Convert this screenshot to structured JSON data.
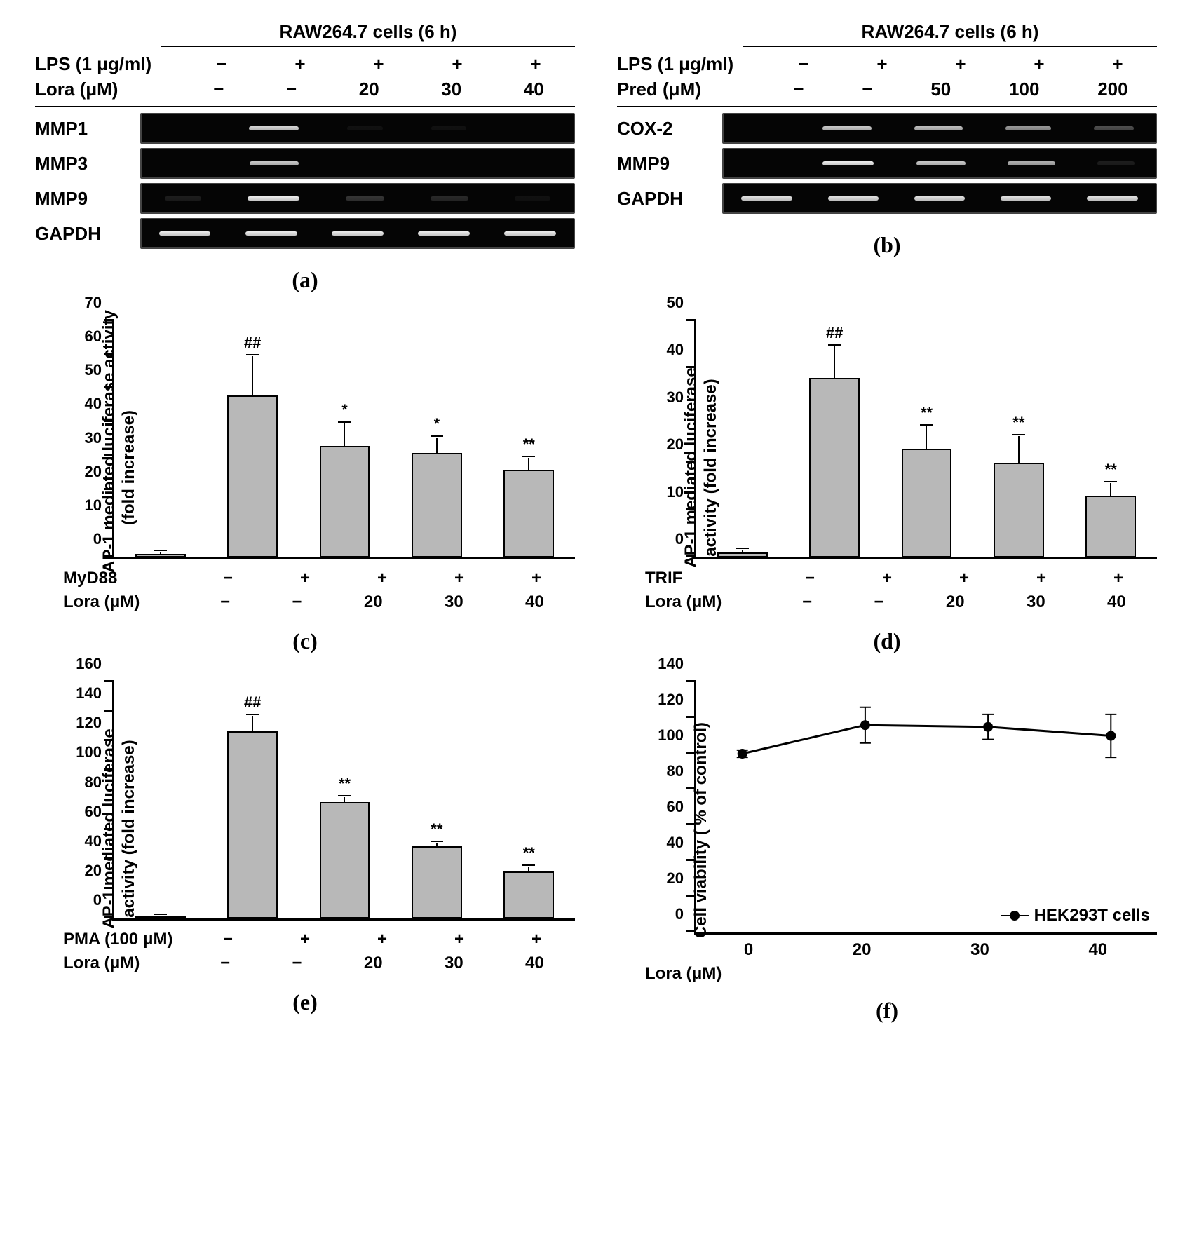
{
  "colors": {
    "bar_fill": "#b8b8b8",
    "bar_border": "#000000",
    "axis": "#000000",
    "gel_bg": "#050505",
    "band": "#e8e8e8",
    "background": "#ffffff",
    "text": "#000000"
  },
  "typography": {
    "label_fontsize": 26,
    "axis_fontsize": 22,
    "panel_label_fontsize": 32,
    "font_family": "Arial"
  },
  "panels": {
    "a": {
      "label": "(a)",
      "header": "RAW264.7 cells (6 h)",
      "treatments": [
        {
          "label": "LPS (1 μg/ml)",
          "values": [
            "−",
            "+",
            "+",
            "+",
            "+"
          ]
        },
        {
          "label": "Lora (μM)",
          "values": [
            "−",
            "−",
            "20",
            "30",
            "40"
          ]
        }
      ],
      "rows": [
        {
          "label": "MMP1",
          "intensity": [
            0.0,
            0.85,
            0.05,
            0.02,
            0.0
          ]
        },
        {
          "label": "MMP3",
          "intensity": [
            0.0,
            0.8,
            0.0,
            0.0,
            0.0
          ]
        },
        {
          "label": "MMP9",
          "intensity": [
            0.1,
            0.95,
            0.2,
            0.15,
            0.05
          ]
        },
        {
          "label": "GAPDH",
          "intensity": [
            0.95,
            0.95,
            0.95,
            0.95,
            0.95
          ]
        }
      ]
    },
    "b": {
      "label": "(b)",
      "header": "RAW264.7 cells (6 h)",
      "treatments": [
        {
          "label": "LPS (1 μg/ml)",
          "values": [
            "−",
            "+",
            "+",
            "+",
            "+"
          ]
        },
        {
          "label": "Pred (μM)",
          "values": [
            "−",
            "−",
            "50",
            "100",
            "200"
          ]
        }
      ],
      "rows": [
        {
          "label": "COX-2",
          "intensity": [
            0.0,
            0.8,
            0.75,
            0.6,
            0.3
          ]
        },
        {
          "label": "MMP9",
          "intensity": [
            0.0,
            0.95,
            0.8,
            0.7,
            0.1
          ]
        },
        {
          "label": "GAPDH",
          "intensity": [
            0.9,
            0.9,
            0.9,
            0.9,
            0.9
          ]
        }
      ]
    },
    "c": {
      "label": "(c)",
      "type": "bar",
      "ylabel": "AP-1 mediated luciferase activity\n(fold increase)",
      "ylim": [
        0,
        70
      ],
      "ytick_step": 10,
      "values": [
        1,
        48,
        33,
        31,
        26
      ],
      "errors": [
        1,
        12,
        7,
        5,
        4
      ],
      "annots": [
        "",
        "##",
        "*",
        "*",
        "**"
      ],
      "bar_color": "#b8b8b8",
      "conditions": [
        {
          "label": "MyD88",
          "values": [
            "−",
            "+",
            "+",
            "+",
            "+"
          ]
        },
        {
          "label": "Lora (μM)",
          "values": [
            "−",
            "−",
            "20",
            "30",
            "40"
          ]
        }
      ]
    },
    "d": {
      "label": "(d)",
      "type": "bar",
      "ylabel": "AP-1 mediated luciferase\nactivity (fold increase)",
      "ylim": [
        0,
        50
      ],
      "ytick_step": 10,
      "values": [
        1,
        38,
        23,
        20,
        13
      ],
      "errors": [
        1,
        7,
        5,
        6,
        3
      ],
      "annots": [
        "",
        "##",
        "**",
        "**",
        "**"
      ],
      "bar_color": "#b8b8b8",
      "conditions": [
        {
          "label": "TRIF",
          "values": [
            "−",
            "+",
            "+",
            "+",
            "+"
          ]
        },
        {
          "label": "Lora (μM)",
          "values": [
            "−",
            "−",
            "20",
            "30",
            "40"
          ]
        }
      ]
    },
    "e": {
      "label": "(e)",
      "type": "bar",
      "ylabel": "AP-1 mediated luciferase\nactivity (fold increase)",
      "ylim": [
        0,
        160
      ],
      "ytick_step": 20,
      "values": [
        2,
        127,
        79,
        49,
        32
      ],
      "errors": [
        1,
        11,
        4,
        3,
        4
      ],
      "annots": [
        "",
        "##",
        "**",
        "**",
        "**"
      ],
      "bar_color": "#b8b8b8",
      "conditions": [
        {
          "label": "PMA (100 μM)",
          "values": [
            "−",
            "+",
            "+",
            "+",
            "+"
          ]
        },
        {
          "label": "Lora (μM)",
          "values": [
            "−",
            "−",
            "20",
            "30",
            "40"
          ]
        }
      ]
    },
    "f": {
      "label": "(f)",
      "type": "line",
      "ylabel": "Cell viability ( % of control)",
      "ylim": [
        0,
        140
      ],
      "ytick_step": 20,
      "x": [
        0,
        20,
        30,
        40
      ],
      "y": [
        100,
        116,
        115,
        110
      ],
      "err": [
        2,
        10,
        7,
        12
      ],
      "legend": "HEK293T cells",
      "marker_color": "#000000",
      "line_color": "#000000",
      "xlabel": "Lora (μM)",
      "marker_size": 14,
      "line_width": 3
    }
  }
}
